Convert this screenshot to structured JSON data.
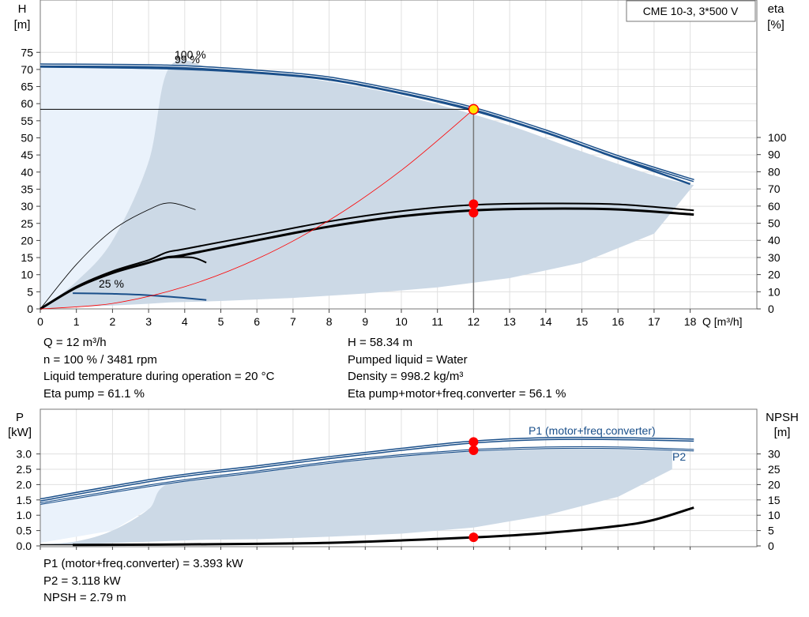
{
  "title_box": "CME 10-3, 3*500 V",
  "top_chart": {
    "y_left_label": "H",
    "y_left_unit": "[m]",
    "y_right_label": "eta",
    "y_right_unit": "[%]",
    "x_label": "Q [m³/h]",
    "x_ticks": [
      "0",
      "1",
      "2",
      "3",
      "4",
      "5",
      "6",
      "7",
      "8",
      "9",
      "10",
      "11",
      "12",
      "13",
      "14",
      "15",
      "16",
      "17",
      "18"
    ],
    "y_left_ticks": [
      "0",
      "5",
      "10",
      "15",
      "20",
      "25",
      "30",
      "35",
      "40",
      "45",
      "50",
      "55",
      "60",
      "65",
      "70",
      "75"
    ],
    "y_right_ticks": [
      "0",
      "10",
      "20",
      "30",
      "40",
      "50",
      "60",
      "70",
      "80",
      "90",
      "100"
    ],
    "curve_labels": {
      "top": "100 %",
      "second": "99 %",
      "bottom": "25 %"
    }
  },
  "top_info": {
    "left": [
      "Q = 12 m³/h",
      "n = 100 % / 3481 rpm",
      "Liquid temperature during operation = 20 °C",
      "Eta pump = 61.1 %"
    ],
    "right": [
      "H = 58.34 m",
      "Pumped liquid = Water",
      "Density = 998.2 kg/m³",
      "Eta pump+motor+freq.converter = 56.1 %"
    ]
  },
  "bottom_chart": {
    "y_left_label": "P",
    "y_left_unit": "[kW]",
    "y_right_label": "NPSH",
    "y_right_unit": "[m]",
    "y_left_ticks": [
      "0.0",
      "0.5",
      "1.0",
      "1.5",
      "2.0",
      "2.5",
      "3.0"
    ],
    "y_right_ticks": [
      "0",
      "5",
      "10",
      "15",
      "20",
      "25",
      "30"
    ],
    "label_p1": "P1 (motor+freq.converter)",
    "label_p2": "P2"
  },
  "bottom_info": [
    "P1 (motor+freq.converter) = 3.393 kW",
    "P2 = 3.118 kW",
    "NPSH = 2.79 m"
  ],
  "chart_data": [
    {
      "type": "line",
      "xlim": [
        0,
        19
      ],
      "ylim": [
        0,
        75
      ],
      "y2lim": [
        0,
        100
      ],
      "duty_point": {
        "q": 12,
        "h": 58.34,
        "eta_pump": 61.1,
        "eta_total": 56.1
      },
      "series": [
        {
          "name": "100 %",
          "axis": "H",
          "x": [
            0,
            3.5,
            6,
            8,
            10,
            12,
            14,
            16,
            18.1
          ],
          "y": [
            71.3,
            71.0,
            69.5,
            67.5,
            63.5,
            58.6,
            52.0,
            44.5,
            37.5
          ]
        },
        {
          "name": "99 %",
          "axis": "H",
          "x": [
            0,
            3.5,
            6,
            8,
            10,
            12,
            14,
            16,
            18.0
          ],
          "y": [
            70.8,
            70.3,
            69.0,
            67.0,
            63.0,
            58.0,
            51.5,
            44.0,
            36.5
          ]
        },
        {
          "name": "25 %",
          "axis": "H",
          "x": [
            0.9,
            2,
            3,
            4,
            4.6
          ],
          "y": [
            4.6,
            4.4,
            4.0,
            3.2,
            2.6
          ]
        },
        {
          "axis": "eta",
          "x": [
            0,
            1,
            2,
            3,
            3.5,
            4,
            6,
            8,
            10,
            12,
            14,
            16,
            18.1
          ],
          "y": [
            0,
            12.5,
            21,
            27,
            30,
            31.5,
            40,
            48,
            54,
            57.5,
            58.5,
            58,
            55
          ]
        },
        {
          "axis": "eta",
          "x": [
            0,
            1,
            2,
            3,
            3.5,
            4,
            6,
            8,
            10,
            12,
            14,
            16,
            18.1
          ],
          "y": [
            0,
            13,
            22,
            28.5,
            33,
            35,
            43,
            51,
            57,
            60.7,
            61.5,
            61,
            57.5
          ]
        },
        {
          "axis": "H",
          "x": [
            0,
            1,
            2,
            3,
            3.6,
            4.3
          ],
          "y": [
            0,
            13,
            23,
            29,
            31,
            29
          ]
        },
        {
          "axis": "eta",
          "x": [
            3.5,
            4.2,
            4.6
          ],
          "y": [
            30,
            30,
            27
          ]
        },
        {
          "name": "system curve",
          "axis": "H",
          "x": [
            0,
            2,
            4,
            6,
            8,
            10,
            12
          ],
          "y": [
            0,
            1.6,
            6.5,
            14.6,
            25.9,
            40.5,
            58.3
          ]
        },
        {
          "name": "operating area",
          "axis": "H",
          "x": [
            0,
            1,
            2,
            3,
            3.6,
            5,
            7,
            9,
            11,
            13,
            15,
            17,
            18.1
          ],
          "y": [
            0,
            8,
            20,
            43,
            71,
            69.6,
            67.9,
            64.6,
            59.8,
            53.6,
            46.0,
            39.0,
            36.2
          ],
          "floor": [
            0,
            0.5,
            1.0,
            1.5,
            1.9,
            2.3,
            3.2,
            4.5,
            6.3,
            9.0,
            13.5,
            22,
            36.2
          ]
        }
      ]
    },
    {
      "type": "line",
      "xlim": [
        0,
        19
      ],
      "ylim": [
        0,
        3.5
      ],
      "y2lim": [
        0,
        35
      ],
      "duty_point": {
        "q": 12,
        "p1": 3.393,
        "p2": 3.118,
        "npsh": 2.79
      },
      "series": [
        {
          "name": "P1 (motor+freq.converter)",
          "axis": "P",
          "x": [
            0,
            3.5,
            6,
            8,
            10,
            12,
            14,
            16,
            18.1
          ],
          "y": [
            1.5,
            2.22,
            2.58,
            2.88,
            3.15,
            3.39,
            3.5,
            3.5,
            3.45
          ]
        },
        {
          "name": "P2",
          "axis": "P",
          "x": [
            0,
            3.5,
            6,
            8,
            10,
            12,
            14,
            16,
            18.1
          ],
          "y": [
            1.38,
            2.05,
            2.42,
            2.72,
            2.95,
            3.12,
            3.2,
            3.2,
            3.12
          ]
        },
        {
          "name": "NPSH",
          "axis": "NPSH",
          "x": [
            0.9,
            4,
            8,
            12,
            14,
            16,
            17,
            18.1
          ],
          "y": [
            0.3,
            0.5,
            1.0,
            2.79,
            4.2,
            6.5,
            8.5,
            12.5
          ]
        }
      ]
    }
  ]
}
